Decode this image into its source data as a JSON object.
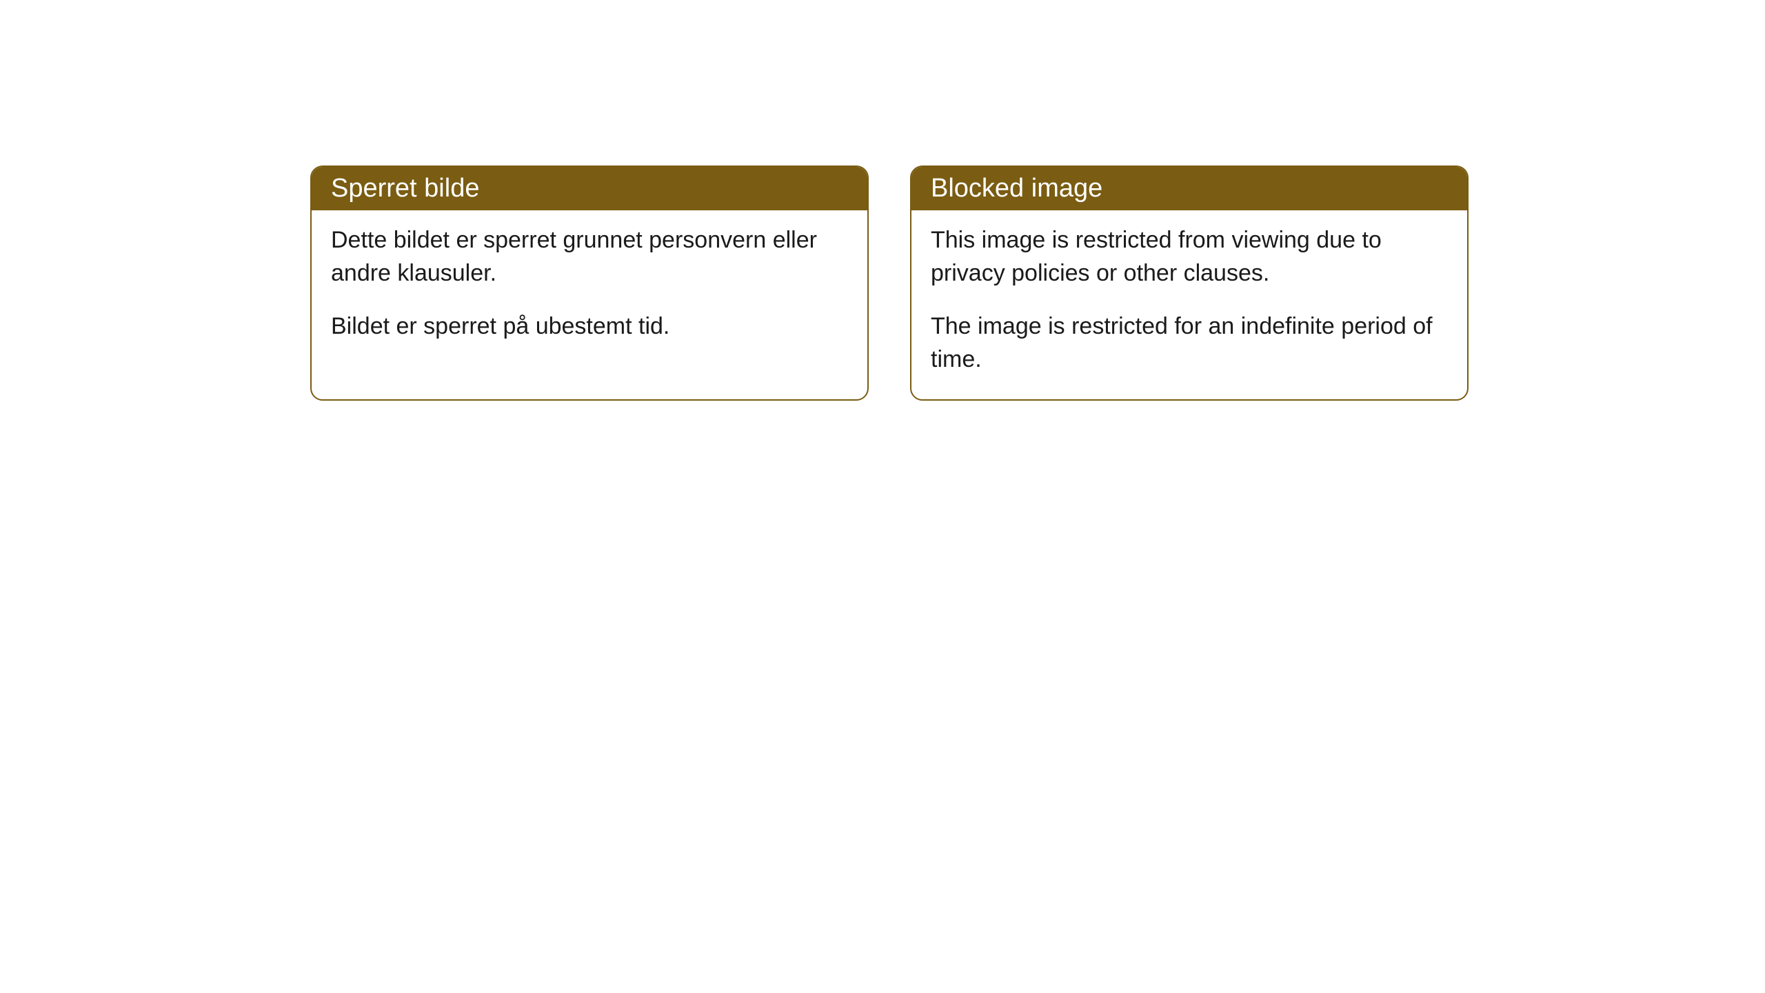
{
  "cards": [
    {
      "title": "Sperret bilde",
      "paragraph1": "Dette bildet er sperret grunnet personvern eller andre klausuler.",
      "paragraph2": "Bildet er sperret på ubestemt tid."
    },
    {
      "title": "Blocked image",
      "paragraph1": "This image is restricted from viewing due to privacy policies or other clauses.",
      "paragraph2": "The image is restricted for an indefinite period of time."
    }
  ],
  "styling": {
    "header_background": "#7a5c12",
    "header_text_color": "#ffffff",
    "border_color": "#7a5c12",
    "body_background": "#ffffff",
    "body_text_color": "#1a1a1a",
    "border_radius": 18,
    "header_fontsize": 38,
    "body_fontsize": 34
  }
}
